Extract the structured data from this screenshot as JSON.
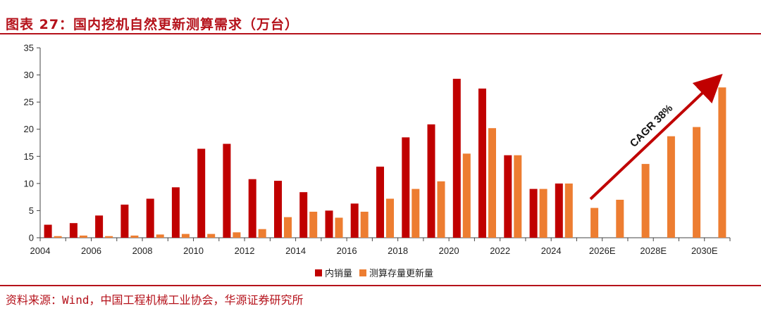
{
  "header": {
    "title": "图表 27：国内挖机自然更新测算需求（万台）"
  },
  "footer": {
    "source": "资料来源：Wind，中国工程机械工业协会，华源证券研究所"
  },
  "colors": {
    "accent": "#b5121b",
    "series1": "#c00000",
    "series2": "#ed7d31",
    "axis": "#444444"
  },
  "chart_data": {
    "type": "bar",
    "title": "国内挖机自然更新测算需求（万台）",
    "xlabel": "",
    "ylabel": "",
    "ylim": [
      0,
      35
    ],
    "yticks": [
      0,
      5,
      10,
      15,
      20,
      25,
      30,
      35
    ],
    "categories": [
      "2004",
      "2005",
      "2006",
      "2007",
      "2008",
      "2009",
      "2010",
      "2011",
      "2012",
      "2013",
      "2014",
      "2015",
      "2016",
      "2017",
      "2018",
      "2019",
      "2020",
      "2021",
      "2022",
      "2023",
      "2024",
      "2025E",
      "2026E",
      "2027E",
      "2028E",
      "2029E",
      "2030E"
    ],
    "xtick_labels": [
      "2004",
      "2006",
      "2008",
      "2010",
      "2012",
      "2014",
      "2016",
      "2018",
      "2020",
      "2022",
      "2024",
      "2026E",
      "2028E",
      "2030E"
    ],
    "series": [
      {
        "name": "内销量",
        "values": [
          2.4,
          2.7,
          4.1,
          6.1,
          7.2,
          9.3,
          16.4,
          17.3,
          10.8,
          10.5,
          8.4,
          5.0,
          6.3,
          13.1,
          18.5,
          20.9,
          29.3,
          27.5,
          15.2,
          9.0,
          10.0,
          null,
          null,
          null,
          null,
          null,
          null
        ]
      },
      {
        "name": "测算存量更新量",
        "values": [
          0.3,
          0.4,
          0.3,
          0.4,
          0.6,
          0.7,
          0.7,
          1.0,
          1.6,
          3.8,
          4.8,
          3.7,
          4.8,
          7.2,
          9.0,
          10.4,
          15.5,
          20.2,
          15.2,
          9.0,
          10.0,
          5.5,
          7.0,
          13.6,
          18.7,
          20.4,
          27.7
        ]
      }
    ],
    "legend_position": "bottom",
    "annotations": [
      {
        "text": "CAGR 38%",
        "type": "arrow"
      }
    ]
  }
}
